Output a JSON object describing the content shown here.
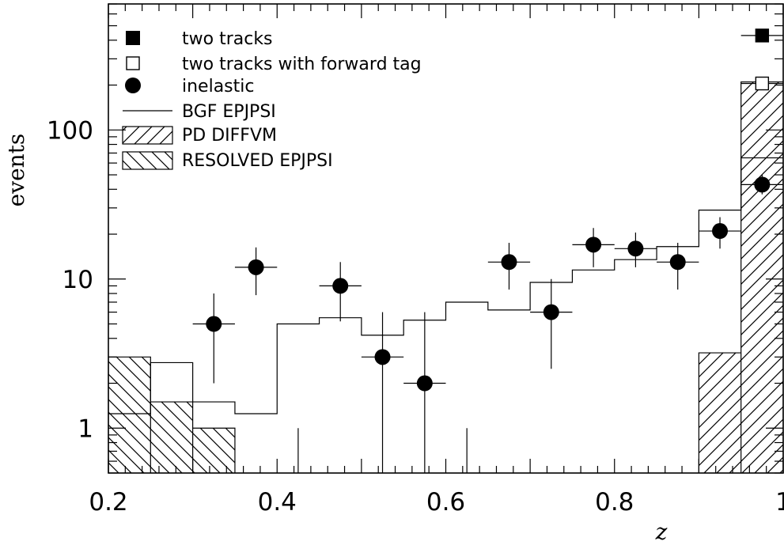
{
  "chart_data": {
    "type": "bar",
    "xlabel": "z",
    "ylabel": "events",
    "xlim": [
      0.2,
      1.0
    ],
    "ylim": [
      0.5,
      700
    ],
    "yscale": "log",
    "x_ticks": [
      "0.2",
      "0.4",
      "0.6",
      "0.8",
      "1"
    ],
    "x_tick_values": [
      0.2,
      0.4,
      0.6,
      0.8,
      1.0
    ],
    "y_ticks": [
      "1",
      "10",
      "100"
    ],
    "y_tick_values": [
      1,
      10,
      100
    ],
    "legend": {
      "placement": "top-left",
      "entries": [
        {
          "label": "two tracks",
          "symbol": "filled-square"
        },
        {
          "label": "two tracks with forward tag",
          "symbol": "open-square"
        },
        {
          "label": "inelastic",
          "symbol": "filled-circle"
        },
        {
          "label": "BGF EPJPSI",
          "symbol": "line"
        },
        {
          "label": "PD DIFFVM",
          "symbol": "hatch-forward"
        },
        {
          "label": "RESOLVED EPJPSI",
          "symbol": "hatch-back"
        }
      ]
    },
    "bin_edges": [
      0.2,
      0.25,
      0.3,
      0.35,
      0.4,
      0.45,
      0.5,
      0.55,
      0.6,
      0.65,
      0.7,
      0.75,
      0.8,
      0.85,
      0.9,
      0.95,
      1.0
    ],
    "series": [
      {
        "name": "BGF EPJPSI",
        "kind": "histogram-line",
        "values": [
          1.25,
          2.75,
          1.5,
          1.25,
          5.0,
          5.5,
          4.2,
          5.3,
          7.0,
          6.2,
          9.5,
          11.5,
          13.5,
          16.5,
          29,
          65
        ]
      },
      {
        "name": "PD DIFFVM",
        "kind": "hatched-histogram",
        "hatch": "forward",
        "values": [
          0,
          0,
          0,
          0,
          0,
          0,
          0,
          0,
          0,
          0,
          0,
          0,
          0,
          0,
          3.2,
          210
        ]
      },
      {
        "name": "RESOLVED EPJPSI",
        "kind": "hatched-histogram",
        "hatch": "back",
        "values": [
          3.0,
          1.5,
          1.0,
          0,
          0,
          0,
          0,
          0,
          0,
          0,
          0,
          0,
          0,
          0,
          0,
          0
        ]
      },
      {
        "name": "inelastic",
        "kind": "points-with-errors",
        "points": [
          {
            "x": 0.325,
            "y": 5.0,
            "ylo": 2.0,
            "yhi": 8.0
          },
          {
            "x": 0.375,
            "y": 12.0,
            "ylo": 7.8,
            "yhi": 16.3
          },
          {
            "x": 0.475,
            "y": 9.0,
            "ylo": 5.2,
            "yhi": 13.0
          },
          {
            "x": 0.525,
            "y": 3.0,
            "ylo": 0.5,
            "yhi": 6.0
          },
          {
            "x": 0.575,
            "y": 2.0,
            "ylo": 0.5,
            "yhi": 6.0
          },
          {
            "x": 0.675,
            "y": 13.0,
            "ylo": 8.5,
            "yhi": 17.5
          },
          {
            "x": 0.725,
            "y": 6.0,
            "ylo": 2.5,
            "yhi": 10.0
          },
          {
            "x": 0.775,
            "y": 17.0,
            "ylo": 12.0,
            "yhi": 22.0
          },
          {
            "x": 0.825,
            "y": 16.0,
            "ylo": 12.0,
            "yhi": 20.5
          },
          {
            "x": 0.875,
            "y": 13.0,
            "ylo": 8.5,
            "yhi": 17.5
          },
          {
            "x": 0.925,
            "y": 21.0,
            "ylo": 16.0,
            "yhi": 26.0
          },
          {
            "x": 0.975,
            "y": 43.0,
            "ylo": 37.0,
            "yhi": 50.0
          }
        ]
      },
      {
        "name": "two tracks",
        "kind": "points",
        "points": [
          {
            "x": 0.975,
            "y": 430
          }
        ]
      },
      {
        "name": "two tracks with forward tag",
        "kind": "points",
        "points": [
          {
            "x": 0.975,
            "y": 205
          }
        ]
      }
    ],
    "extra_lines": [
      {
        "x": 0.425,
        "y_from": 0.5,
        "y_to": 1.0
      },
      {
        "x": 0.625,
        "y_from": 0.5,
        "y_to": 1.0
      }
    ]
  }
}
